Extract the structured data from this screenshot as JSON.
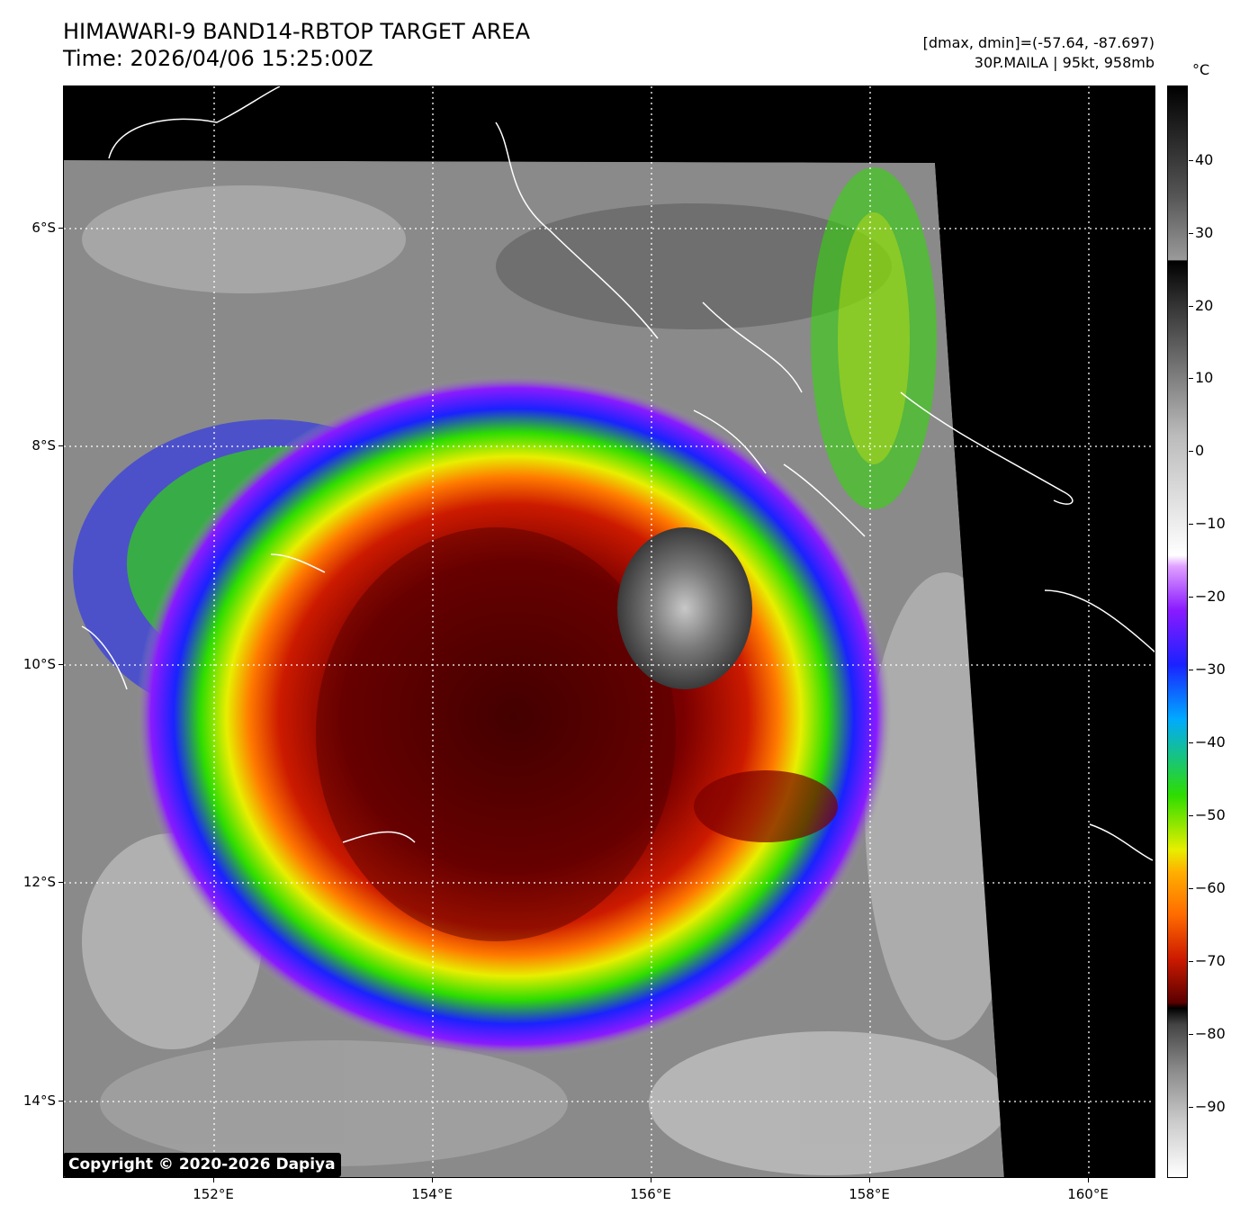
{
  "title": {
    "line1": "HIMAWARI-9 BAND14-RBTOP TARGET AREA",
    "line2": "Time: 2026/04/06 15:25:00Z"
  },
  "info": {
    "range": "[dmax, dmin]=(-57.64, -87.697)",
    "storm": "30P.MAILA | 95kt, 958mb"
  },
  "colorbar": {
    "unit": "°C",
    "labels": [
      "40",
      "30",
      "20",
      "10",
      "0",
      "−10",
      "−20",
      "−30",
      "−40",
      "−50",
      "−60",
      "−70",
      "−80",
      "−90"
    ]
  },
  "axes": {
    "lon_labels": [
      "152°E",
      "154°E",
      "156°E",
      "158°E",
      "160°E"
    ],
    "lat_labels": [
      "6°S",
      "8°S",
      "10°S",
      "12°S",
      "14°S"
    ]
  },
  "copyright": "Copyright © 2020-2026 Dapiya",
  "colors": {
    "eye": "#6a6a6a",
    "core": "#3a0000",
    "red": "#cc1a00",
    "orange": "#ff7a00",
    "yellow": "#e8ee00",
    "green": "#2edd00",
    "blue": "#1a22ff",
    "purple": "#8a1aff",
    "clouds": "#9a9a9a",
    "coast": "#ffffff"
  }
}
